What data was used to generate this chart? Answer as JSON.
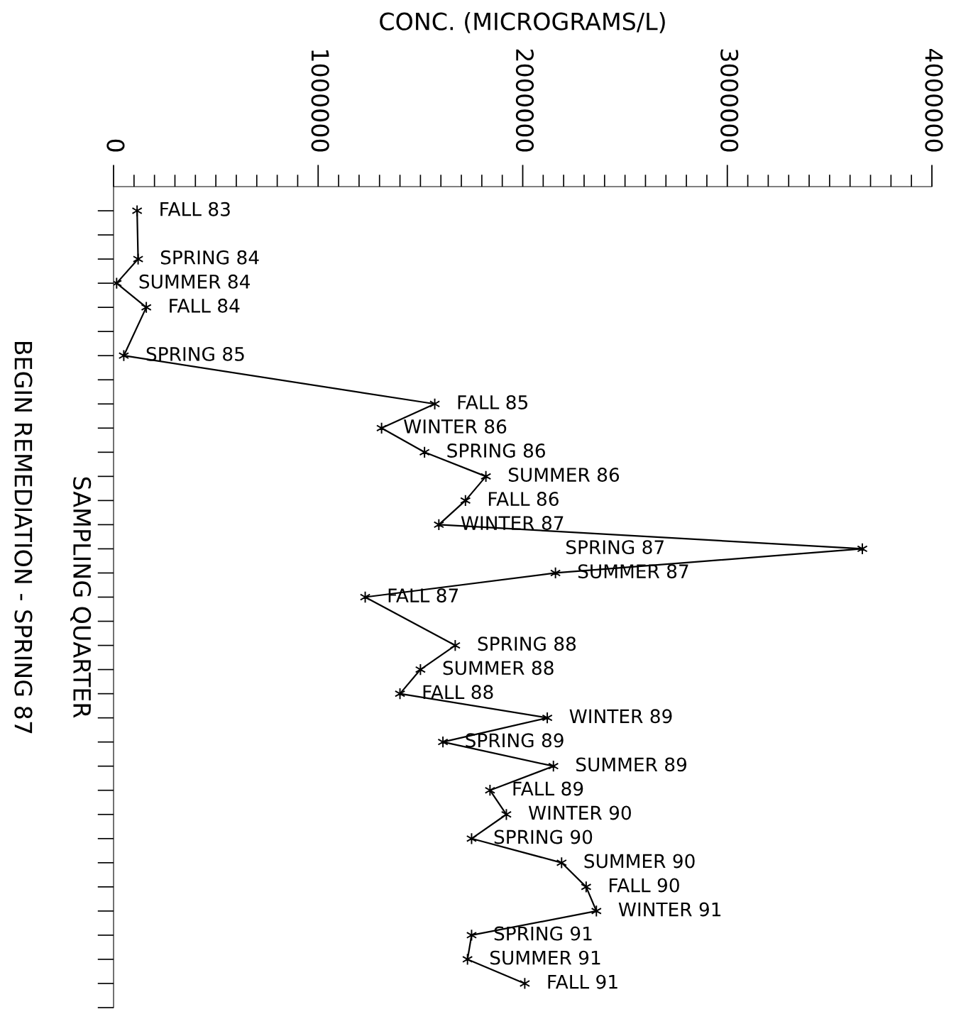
{
  "chart_data": {
    "type": "line",
    "orientation": "horizontal",
    "xlabel": "CONC. (MICROGRAMS/L)",
    "ylabel": "SAMPLING QUARTER",
    "annotations": [
      "BEGIN REMEDIATION - SPRING 87"
    ],
    "categories": [
      "FALL 83",
      null,
      "SPRING 84",
      "SUMMER 84",
      "FALL 84",
      null,
      "SPRING 85",
      null,
      "FALL 85",
      "WINTER 86",
      "SPRING 86",
      "SUMMER 86",
      "FALL 86",
      "WINTER 87",
      "SPRING 87",
      "SUMMER 87",
      "FALL 87",
      null,
      "SPRING 88",
      "SUMMER 88",
      "FALL 88",
      "WINTER 89",
      "SPRING 89",
      "SUMMER 89",
      "FALL 89",
      "WINTER 90",
      "SPRING 90",
      "SUMMER 90",
      "FALL 90",
      "WINTER 91",
      "SPRING 91",
      "SUMMER 91",
      "FALL 91"
    ],
    "values": [
      115000,
      null,
      120000,
      15000,
      160000,
      null,
      50000,
      null,
      1570000,
      1310000,
      1520000,
      1820000,
      1720000,
      1590000,
      3660000,
      2160000,
      1230000,
      null,
      1670000,
      1500000,
      1400000,
      2120000,
      1610000,
      2150000,
      1840000,
      1920000,
      1750000,
      2190000,
      2310000,
      2360000,
      1750000,
      1730000,
      2010000
    ],
    "color": "#000000",
    "marker": "cross",
    "line_style": "solid",
    "grid": false,
    "legend": false,
    "xlim": [
      0,
      4000000
    ],
    "xticks": [
      0,
      1000000,
      2000000,
      3000000,
      4000000
    ]
  }
}
